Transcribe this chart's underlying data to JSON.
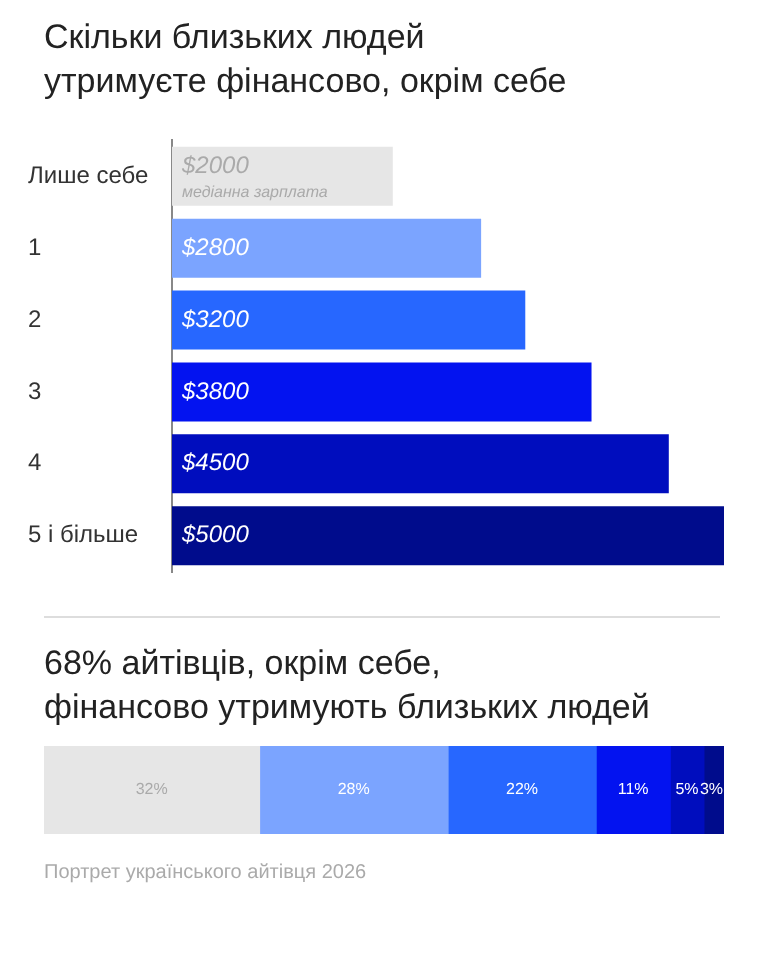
{
  "chart_data": [
    {
      "type": "bar",
      "title": "Скільки близьких людей\nутримуєте фінансово, окрім себе",
      "orientation": "horizontal",
      "categories": [
        "Лише себе",
        "1",
        "2",
        "3",
        "4",
        "5 і більше"
      ],
      "values": [
        2000,
        2800,
        3200,
        3800,
        4500,
        5000
      ],
      "value_labels": [
        "$2000",
        "$2800",
        "$3200",
        "$3800",
        "$4500",
        "$5000"
      ],
      "colors": [
        "#e6e6e6",
        "#7ba4ff",
        "#2767ff",
        "#0313f0",
        "#000dbe",
        "#000c8c"
      ],
      "xlim": [
        0,
        5000
      ],
      "tick_labels": "y",
      "annotations": [
        "медіанна зарплата"
      ]
    },
    {
      "type": "bar",
      "title": "68% айтівців, окрім себе,\nфінансово утримують близьких людей",
      "orientation": "horizontal",
      "stacked": true,
      "categories": [
        null
      ],
      "xlim": [
        0,
        101
      ],
      "tick_labels": false,
      "series": [
        {
          "color": "#e6e6e6",
          "values": [
            32
          ],
          "value_labels": [
            "32%"
          ]
        },
        {
          "color": "#7ba4ff",
          "values": [
            28
          ],
          "value_labels": [
            "28%"
          ]
        },
        {
          "color": "#2767ff",
          "values": [
            22
          ],
          "value_labels": [
            "22%"
          ]
        },
        {
          "color": "#0313f0",
          "values": [
            11
          ],
          "value_labels": [
            "11%"
          ]
        },
        {
          "color": "#000dbe",
          "values": [
            5
          ],
          "value_labels": [
            "5%"
          ]
        },
        {
          "color": "#000c8c",
          "values": [
            3
          ],
          "value_labels": [
            "3%"
          ]
        }
      ],
      "annotations": [
        "Портрет українського айтівця 2026"
      ]
    }
  ]
}
